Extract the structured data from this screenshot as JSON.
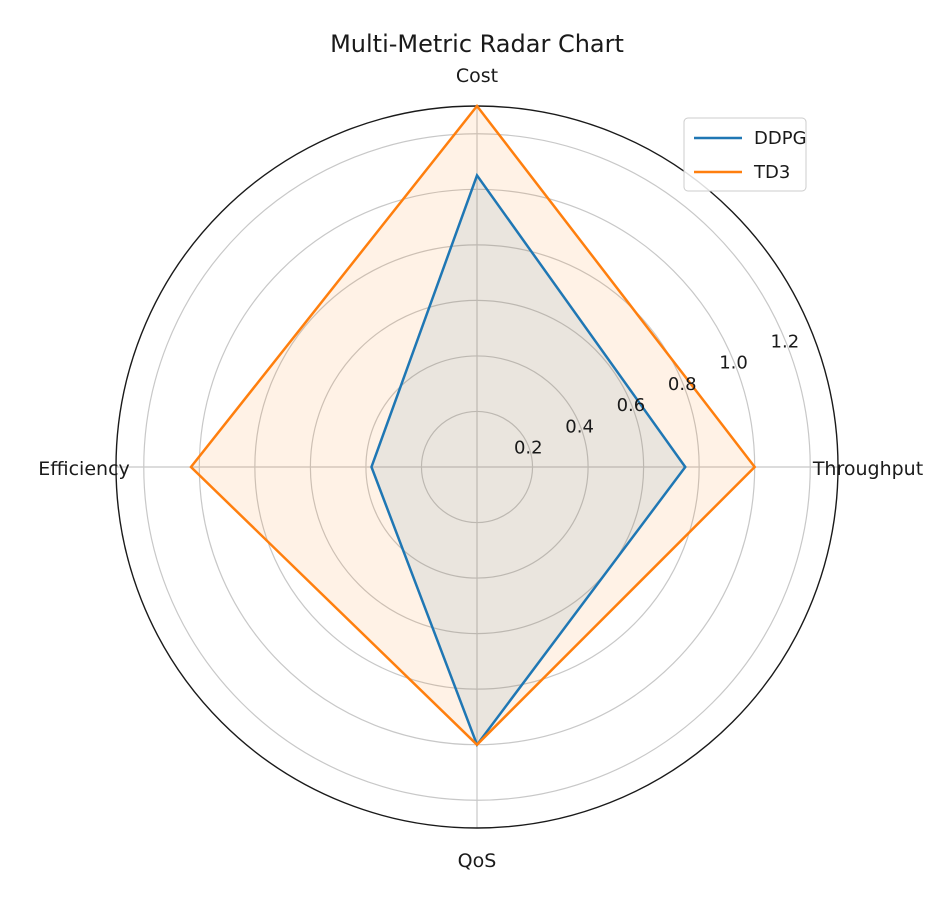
{
  "chart_data": {
    "type": "radar",
    "title": "Multi-Metric Radar Chart",
    "axes": [
      "Throughput",
      "Cost",
      "Efficiency",
      "QoS"
    ],
    "rlim": [
      0,
      1.3
    ],
    "rticks": [
      0.2,
      0.4,
      0.6,
      0.8,
      1.0,
      1.2
    ],
    "rtick_labels": [
      "0.2",
      "0.4",
      "0.6",
      "0.8",
      "1.0",
      "1.2"
    ],
    "grid": true,
    "legend_position": "top-right",
    "series": [
      {
        "name": "DDPG",
        "color": "#1f77b4",
        "values": [
          0.75,
          1.05,
          0.38,
          1.0
        ]
      },
      {
        "name": "TD3",
        "color": "#ff7f0e",
        "values": [
          1.0,
          1.3,
          1.03,
          1.0
        ]
      }
    ]
  }
}
